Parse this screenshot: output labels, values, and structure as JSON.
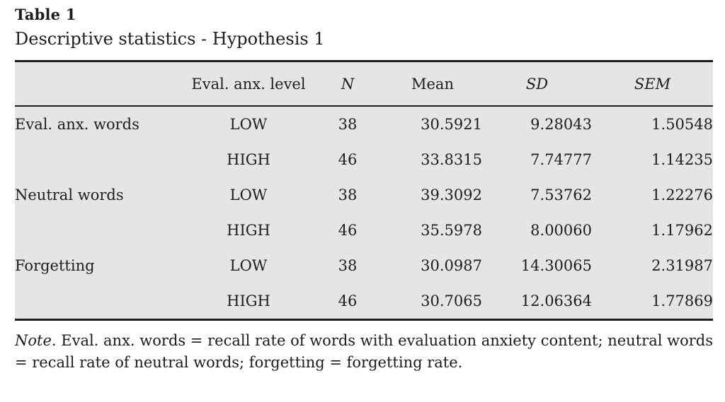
{
  "caption": {
    "label": "Table 1",
    "title": "Descriptive statistics - Hypothesis 1"
  },
  "table": {
    "columns": {
      "measure": "",
      "level": "Eval. anx. level",
      "n": "N",
      "mean": "Mean",
      "sd": "SD",
      "sem": "SEM"
    },
    "rows": [
      {
        "measure": "Eval. anx. words",
        "level": "LOW",
        "n": "38",
        "mean": "30.5921",
        "sd": "9.28043",
        "sem": "1.50548"
      },
      {
        "measure": "",
        "level": "HIGH",
        "n": "46",
        "mean": "33.8315",
        "sd": "7.74777",
        "sem": "1.14235"
      },
      {
        "measure": "Neutral words",
        "level": "LOW",
        "n": "38",
        "mean": "39.3092",
        "sd": "7.53762",
        "sem": "1.22276"
      },
      {
        "measure": "",
        "level": "HIGH",
        "n": "46",
        "mean": "35.5978",
        "sd": "8.00060",
        "sem": "1.17962"
      },
      {
        "measure": "Forgetting",
        "level": "LOW",
        "n": "38",
        "mean": "30.0987",
        "sd": "14.30065",
        "sem": "2.31987"
      },
      {
        "measure": "",
        "level": "HIGH",
        "n": "46",
        "mean": "30.7065",
        "sd": "12.06364",
        "sem": "1.77869"
      }
    ]
  },
  "note": {
    "label": "Note",
    "text": ". Eval. anx. words = recall rate of words with evaluation anxiety content; neutral words = recall rate of neutral words; forgetting = forgetting rate."
  },
  "colors": {
    "table_background": "#e5e5e5",
    "rule": "#1c1c1c",
    "text": "#1d1d1d"
  }
}
